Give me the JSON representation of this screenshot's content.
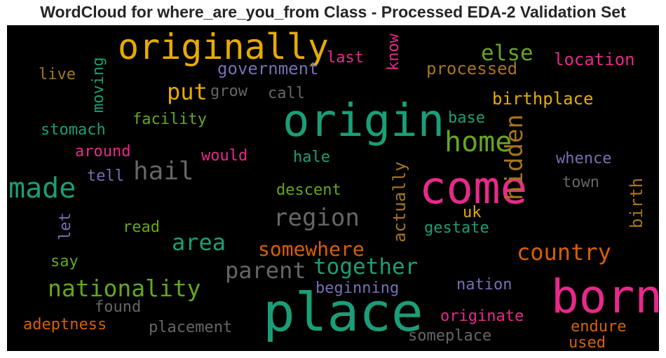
{
  "title": "WordCloud for where_are_you_from Class - Processed EDA-2 Validation Set",
  "chart_data": {
    "type": "wordcloud",
    "title": "WordCloud for where_are_you_from Class - Processed EDA-2 Validation Set",
    "background": "#000000",
    "palette": [
      "#1b9e77",
      "#d95f02",
      "#7570b3",
      "#e7298a",
      "#66a61e",
      "#e6ab02",
      "#a6761d",
      "#666666"
    ],
    "words": [
      {
        "text": "place",
        "weight": 1.0,
        "color": "#1b9e77"
      },
      {
        "text": "born",
        "weight": 0.9,
        "color": "#e7298a"
      },
      {
        "text": "come",
        "weight": 0.88,
        "color": "#e7298a"
      },
      {
        "text": "origin",
        "weight": 0.9,
        "color": "#1b9e77"
      },
      {
        "text": "originally",
        "weight": 0.72,
        "color": "#e6ab02"
      },
      {
        "text": "home",
        "weight": 0.62,
        "color": "#66a61e"
      },
      {
        "text": "made",
        "weight": 0.58,
        "color": "#1b9e77"
      },
      {
        "text": "hidden",
        "weight": 0.55,
        "color": "#a6761d"
      },
      {
        "text": "hail",
        "weight": 0.53,
        "color": "#666666"
      },
      {
        "text": "region",
        "weight": 0.5,
        "color": "#666666"
      },
      {
        "text": "nationality",
        "weight": 0.5,
        "color": "#66a61e"
      },
      {
        "text": "country",
        "weight": 0.48,
        "color": "#d95f02"
      },
      {
        "text": "parent",
        "weight": 0.48,
        "color": "#666666"
      },
      {
        "text": "together",
        "weight": 0.47,
        "color": "#1b9e77"
      },
      {
        "text": "area",
        "weight": 0.47,
        "color": "#1b9e77"
      },
      {
        "text": "somewhere",
        "weight": 0.44,
        "color": "#d95f02"
      },
      {
        "text": "put",
        "weight": 0.44,
        "color": "#e6ab02"
      },
      {
        "text": "else",
        "weight": 0.44,
        "color": "#66a61e"
      },
      {
        "text": "actually",
        "weight": 0.33,
        "color": "#a6761d"
      },
      {
        "text": "birth",
        "weight": 0.33,
        "color": "#a6761d"
      },
      {
        "text": "government",
        "weight": 0.33,
        "color": "#7570b3"
      },
      {
        "text": "processed",
        "weight": 0.33,
        "color": "#a6761d"
      },
      {
        "text": "location",
        "weight": 0.33,
        "color": "#e7298a"
      },
      {
        "text": "birthplace",
        "weight": 0.33,
        "color": "#e6ab02"
      },
      {
        "text": "moving",
        "weight": 0.32,
        "color": "#1b9e77"
      },
      {
        "text": "know",
        "weight": 0.31,
        "color": "#e7298a"
      },
      {
        "text": "last",
        "weight": 0.32,
        "color": "#e7298a"
      },
      {
        "text": "live",
        "weight": 0.32,
        "color": "#a6761d"
      },
      {
        "text": "grow",
        "weight": 0.32,
        "color": "#666666"
      },
      {
        "text": "call",
        "weight": 0.32,
        "color": "#666666"
      },
      {
        "text": "facility",
        "weight": 0.32,
        "color": "#66a61e"
      },
      {
        "text": "stomach",
        "weight": 0.32,
        "color": "#1b9e77"
      },
      {
        "text": "base",
        "weight": 0.32,
        "color": "#1b9e77"
      },
      {
        "text": "around",
        "weight": 0.32,
        "color": "#e7298a"
      },
      {
        "text": "would",
        "weight": 0.32,
        "color": "#e7298a"
      },
      {
        "text": "hale",
        "weight": 0.32,
        "color": "#1b9e77"
      },
      {
        "text": "whence",
        "weight": 0.32,
        "color": "#7570b3"
      },
      {
        "text": "tell",
        "weight": 0.32,
        "color": "#7570b3"
      },
      {
        "text": "descent",
        "weight": 0.32,
        "color": "#66a61e"
      },
      {
        "text": "town",
        "weight": 0.32,
        "color": "#666666"
      },
      {
        "text": "let",
        "weight": 0.32,
        "color": "#7570b3"
      },
      {
        "text": "uk",
        "weight": 0.32,
        "color": "#e6ab02"
      },
      {
        "text": "read",
        "weight": 0.32,
        "color": "#66a61e"
      },
      {
        "text": "gestate",
        "weight": 0.32,
        "color": "#1b9e77"
      },
      {
        "text": "say",
        "weight": 0.32,
        "color": "#66a61e"
      },
      {
        "text": "beginning",
        "weight": 0.32,
        "color": "#7570b3"
      },
      {
        "text": "nation",
        "weight": 0.32,
        "color": "#7570b3"
      },
      {
        "text": "found",
        "weight": 0.32,
        "color": "#666666"
      },
      {
        "text": "originate",
        "weight": 0.32,
        "color": "#e7298a"
      },
      {
        "text": "adeptness",
        "weight": 0.32,
        "color": "#d95f02"
      },
      {
        "text": "placement",
        "weight": 0.32,
        "color": "#666666"
      },
      {
        "text": "endure",
        "weight": 0.32,
        "color": "#d95f02"
      },
      {
        "text": "someplace",
        "weight": 0.32,
        "color": "#666666"
      },
      {
        "text": "used",
        "weight": 0.32,
        "color": "#d95f02"
      }
    ]
  }
}
